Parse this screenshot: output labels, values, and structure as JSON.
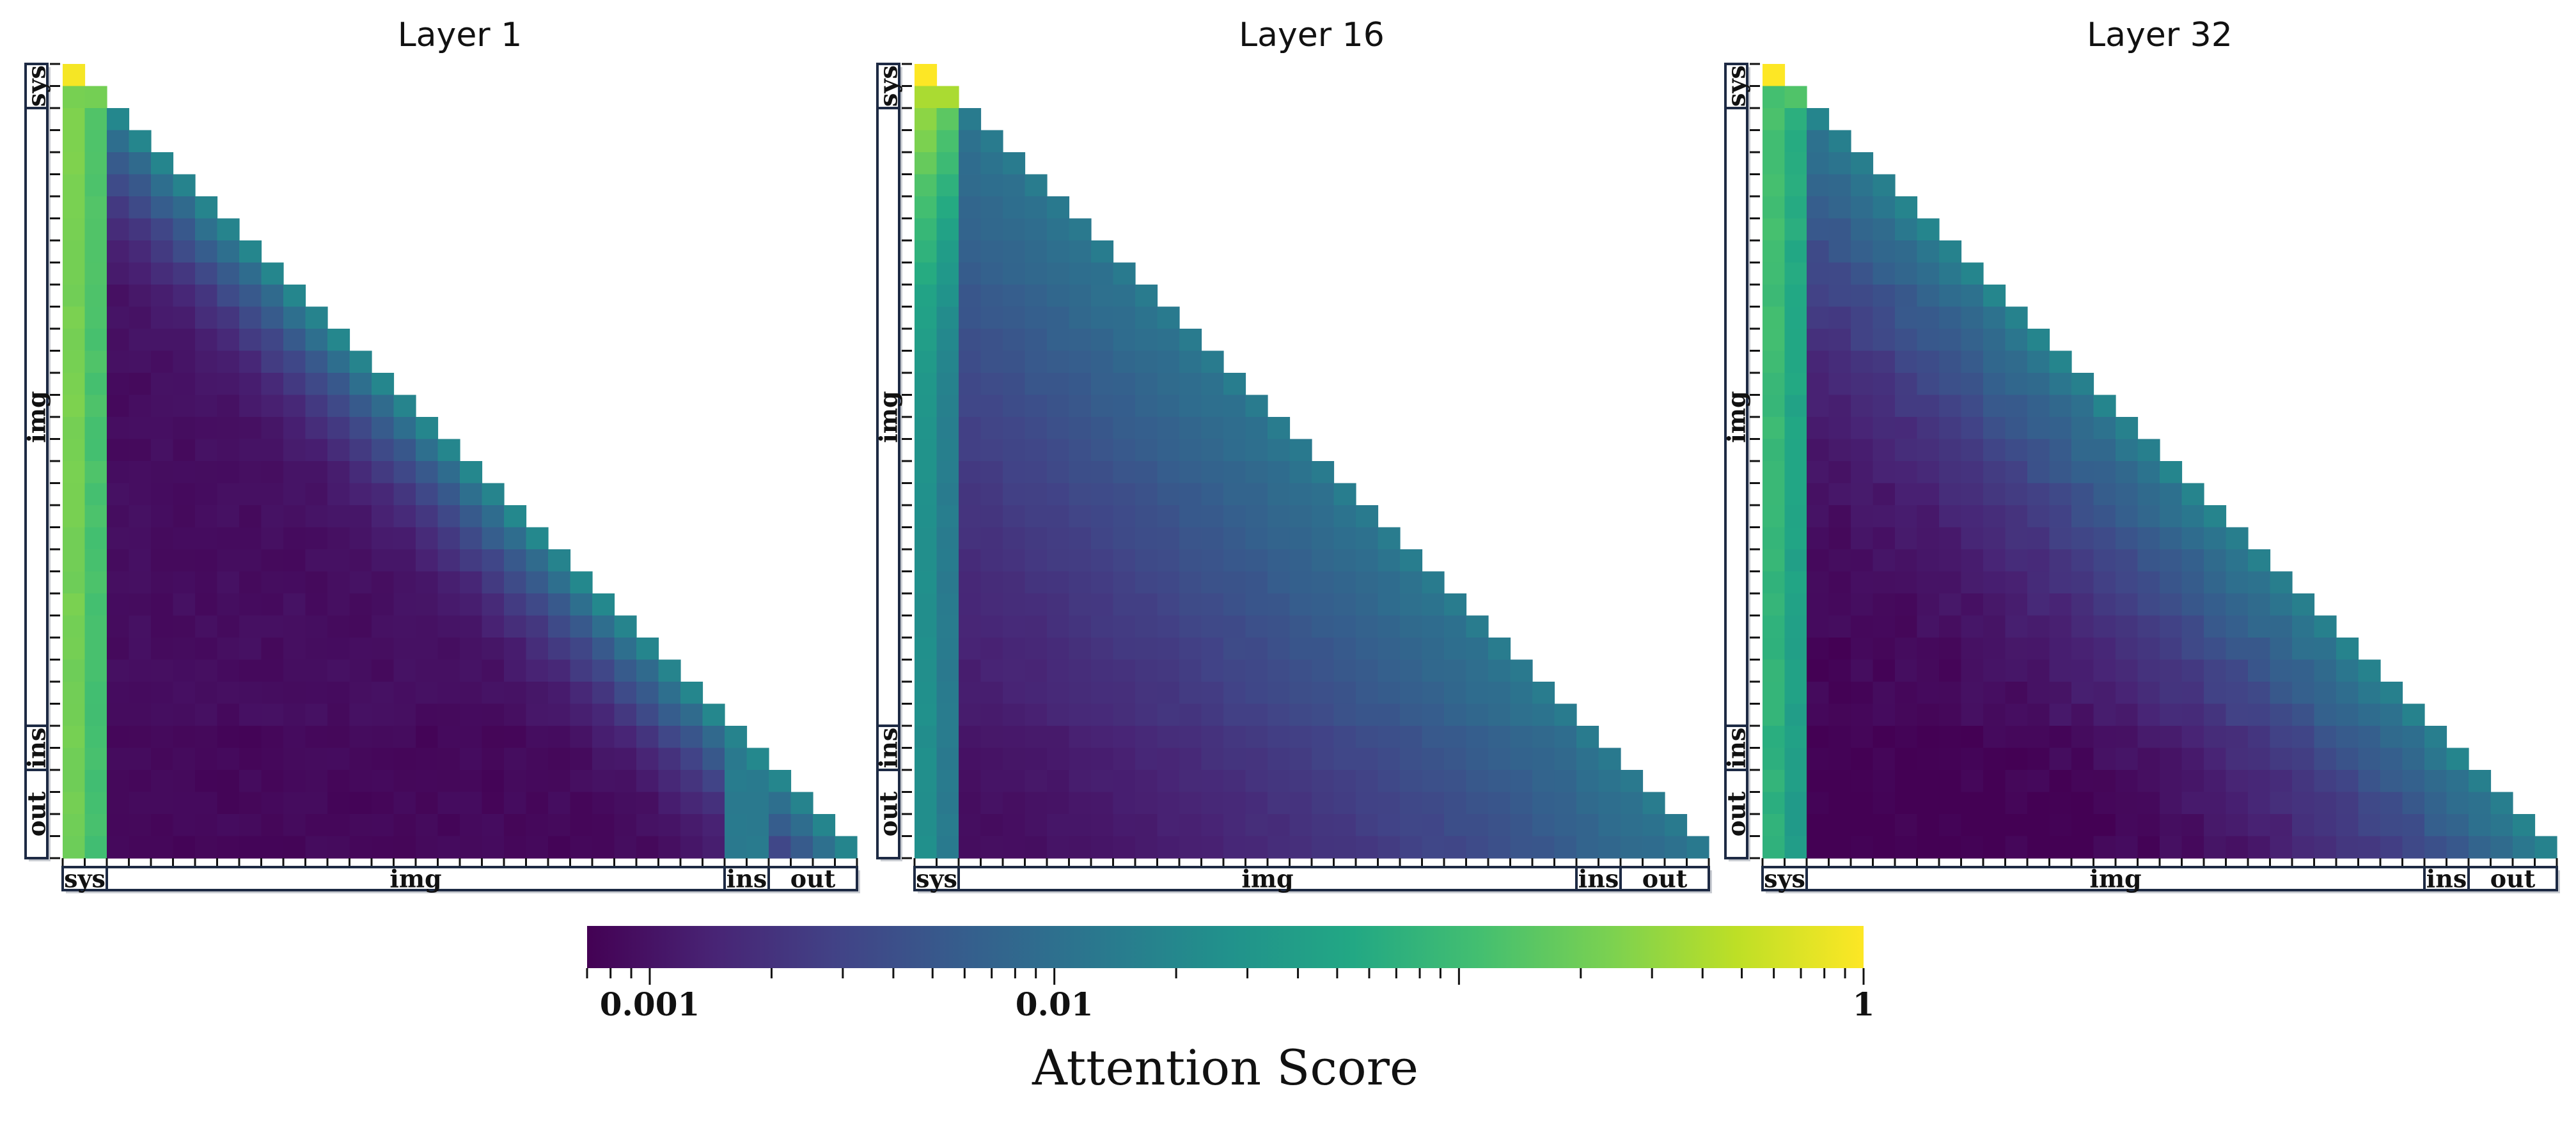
{
  "chart_data": {
    "type": "heatmap",
    "panels": [
      {
        "title": "Layer 1",
        "profile": {
          "diag": 0.019,
          "sink": 0.2,
          "sink_decay": 0.004,
          "floor": 0.0009,
          "spread": 0.6,
          "ins_attn": 0.014,
          "sys_col": 0.034,
          "noise": 0.18
        }
      },
      {
        "title": "Layer 16",
        "profile": {
          "diag": 0.014,
          "sink": 0.5,
          "sink_decay": 0.3,
          "floor": 0.00075,
          "spread": 0.12,
          "ins_attn": 0.0012,
          "sys_col": 0.025,
          "noise": 0.12
        }
      },
      {
        "title": "Layer 32",
        "profile": {
          "diag": 0.017,
          "sink": 0.08,
          "sink_decay": 0.035,
          "floor": 0.00075,
          "spread": 0.25,
          "ins_attn": 0.0015,
          "sys_col": 0.045,
          "noise": 0.25
        }
      }
    ],
    "segments": [
      {
        "label": "sys",
        "length": 2
      },
      {
        "label": "img",
        "length": 28
      },
      {
        "label": "ins",
        "length": 2
      },
      {
        "label": "out",
        "length": 4
      }
    ],
    "mask": "lower-triangular",
    "colormap": "viridis",
    "color_scale": "log",
    "colorbar": {
      "title": "Attention Score",
      "range": [
        0.0007,
        1
      ],
      "ticks": [
        {
          "value": 0.001,
          "label": "0.001"
        },
        {
          "value": 0.01,
          "label": "0.01"
        },
        {
          "value": 1,
          "label": "1"
        }
      ],
      "placement": "bottom"
    }
  }
}
